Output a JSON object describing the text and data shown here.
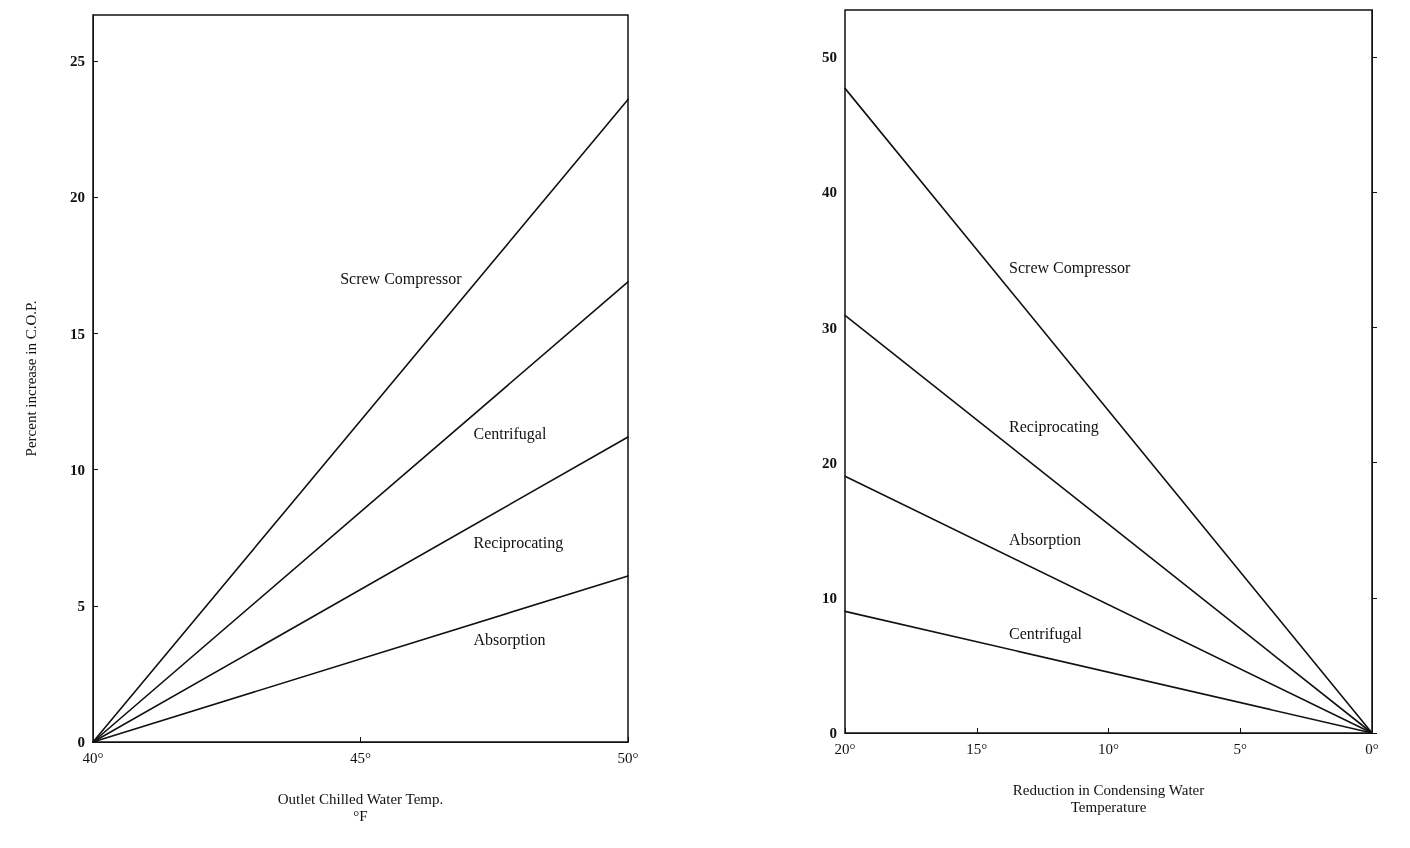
{
  "chart_data": [
    {
      "type": "line",
      "xlabel": "Outlet Chilled Water Temp.\n°F",
      "ylabel": "Percent increase in C.O.P.",
      "xlim": [
        40,
        50
      ],
      "xticks": [
        {
          "value": 40,
          "label": "40°"
        },
        {
          "value": 45,
          "label": "45°"
        },
        {
          "value": 50,
          "label": "50°"
        }
      ],
      "ylim": [
        0,
        26.7
      ],
      "yticks": [
        0,
        5,
        10,
        15,
        20,
        25
      ],
      "grid": false,
      "marker": "none",
      "line_style": "solid",
      "series": [
        {
          "name": "Screw Compressor",
          "color": "#111111",
          "x": [
            40,
            50
          ],
          "values": [
            0,
            23.6
          ]
        },
        {
          "name": "Centrifugal",
          "color": "#111111",
          "x": [
            40,
            50
          ],
          "values": [
            0,
            16.9
          ]
        },
        {
          "name": "Reciprocating",
          "color": "#111111",
          "x": [
            40,
            50
          ],
          "values": [
            0,
            11.2
          ]
        },
        {
          "name": "Absorption",
          "color": "#111111",
          "x": [
            40,
            50
          ],
          "values": [
            0,
            6.1
          ]
        }
      ]
    },
    {
      "type": "line",
      "xlabel": "Reduction in Condensing Water\nTemperature",
      "xlim": [
        20,
        0
      ],
      "xticks": [
        {
          "value": 20,
          "label": "20°"
        },
        {
          "value": 15,
          "label": "15°"
        },
        {
          "value": 10,
          "label": "10°"
        },
        {
          "value": 5,
          "label": "5°"
        },
        {
          "value": 0,
          "label": "0°"
        }
      ],
      "ylim": [
        0,
        53.5
      ],
      "yticks": [
        0,
        10,
        20,
        30,
        40,
        50
      ],
      "grid": false,
      "marker": "none",
      "line_style": "solid",
      "series": [
        {
          "name": "Screw Compressor",
          "color": "#111111",
          "x": [
            20,
            0
          ],
          "values": [
            47.7,
            0
          ]
        },
        {
          "name": "Reciprocating",
          "color": "#111111",
          "x": [
            20,
            0
          ],
          "values": [
            30.9,
            0
          ]
        },
        {
          "name": "Absorption",
          "color": "#111111",
          "x": [
            20,
            0
          ],
          "values": [
            19.0,
            0
          ]
        },
        {
          "name": "Centrifugal",
          "color": "#111111",
          "x": [
            20,
            0
          ],
          "values": [
            9.0,
            0
          ]
        }
      ]
    }
  ]
}
